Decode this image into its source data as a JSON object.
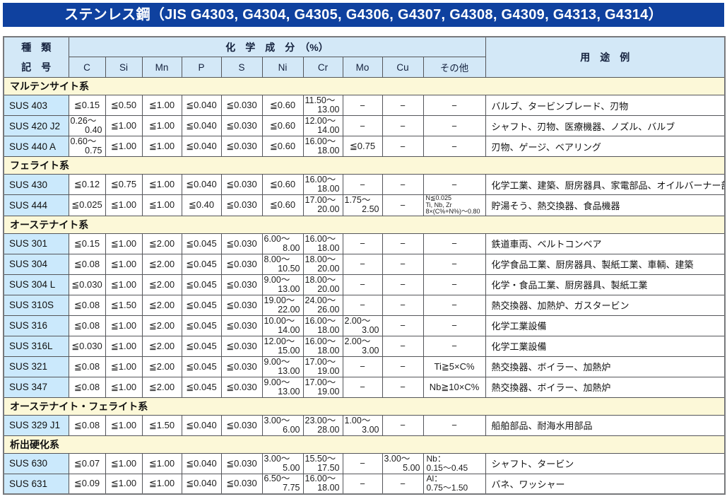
{
  "title": "ステンレス鋼（JIS G4303, G4304, G4305, G4306, G4307, G4308, G4309, G4313, G4314）",
  "colors": {
    "title_bg": "#0f419f",
    "header_bg": "#d3e8f7",
    "label_bg": "#cbe9fc",
    "section_bg": "#fcf8d8"
  },
  "header": {
    "kind_line1": "種　類",
    "kind_line2": "記　号",
    "chem_group": "化　学　成　分　（%）",
    "columns": [
      "C",
      "Si",
      "Mn",
      "P",
      "S",
      "Ni",
      "Cr",
      "Mo",
      "Cu",
      "その他"
    ],
    "usage": "用　途　例"
  },
  "sections": [
    {
      "name": "マルテンサイト系",
      "rows": [
        {
          "code": "SUS 403",
          "c": "≦0.15",
          "si": "≦0.50",
          "mn": "≦1.00",
          "p": "≦0.040",
          "s": "≦0.030",
          "ni": "≦0.60",
          "cr": "11.50～\n13.00",
          "mo": "−",
          "cu": "−",
          "other": "−",
          "usage": "バルブ、タービンブレード、刃物"
        },
        {
          "code": "SUS 420 J2",
          "c": "0.26～\n0.40",
          "si": "≦1.00",
          "mn": "≦1.00",
          "p": "≦0.040",
          "s": "≦0.030",
          "ni": "≦0.60",
          "cr": "12.00～\n14.00",
          "mo": "−",
          "cu": "−",
          "other": "−",
          "usage": "シャフト、刃物、医療機器、ノズル、バルブ"
        },
        {
          "code": "SUS 440 A",
          "c": "0.60～\n0.75",
          "si": "≦1.00",
          "mn": "≦1.00",
          "p": "≦0.040",
          "s": "≦0.030",
          "ni": "≦0.60",
          "cr": "16.00～\n18.00",
          "mo": "≦0.75",
          "cu": "−",
          "other": "−",
          "usage": "刃物、ゲージ、ベアリング"
        }
      ]
    },
    {
      "name": "フェライト系",
      "rows": [
        {
          "code": "SUS 430",
          "c": "≦0.12",
          "si": "≦0.75",
          "mn": "≦1.00",
          "p": "≦0.040",
          "s": "≦0.030",
          "ni": "≦0.60",
          "cr": "16.00～\n18.00",
          "mo": "−",
          "cu": "−",
          "other": "−",
          "usage": "化学工業、建築、厨房器具、家電部品、オイルバーナー部品"
        },
        {
          "code": "SUS 444",
          "c": "≦0.025",
          "si": "≦1.00",
          "mn": "≦1.00",
          "p": "≦0.40",
          "s": "≦0.030",
          "ni": "≦0.60",
          "cr": "17.00～\n20.00",
          "mo": "1.75～\n2.50",
          "cu": "−",
          "other": "N≦0.025\nTi, Nb, Zr\n8×(C%+N%)～0.80",
          "usage": "貯湯そう、熱交換器、食品機器"
        }
      ]
    },
    {
      "name": "オーステナイト系",
      "rows": [
        {
          "code": "SUS 301",
          "c": "≦0.15",
          "si": "≦1.00",
          "mn": "≦2.00",
          "p": "≦0.045",
          "s": "≦0.030",
          "ni": "6.00～\n8.00",
          "cr": "16.00～\n18.00",
          "mo": "−",
          "cu": "−",
          "other": "−",
          "usage": "鉄道車両、ベルトコンベア"
        },
        {
          "code": "SUS 304",
          "c": "≦0.08",
          "si": "≦1.00",
          "mn": "≦2.00",
          "p": "≦0.045",
          "s": "≦0.030",
          "ni": "8.00～\n10.50",
          "cr": "18.00～\n20.00",
          "mo": "−",
          "cu": "−",
          "other": "−",
          "usage": "化学食品工業、厨房器具、製紙工業、車輌、建築"
        },
        {
          "code": "SUS 304 L",
          "c": "≦0.030",
          "si": "≦1.00",
          "mn": "≦2.00",
          "p": "≦0.045",
          "s": "≦0.030",
          "ni": "9.00～\n13.00",
          "cr": "18.00～\n20.00",
          "mo": "−",
          "cu": "−",
          "other": "−",
          "usage": "化学・食品工業、厨房器具、製紙工業"
        },
        {
          "code": "SUS 310S",
          "c": "≦0.08",
          "si": "≦1.50",
          "mn": "≦2.00",
          "p": "≦0.045",
          "s": "≦0.030",
          "ni": "19.00～\n22.00",
          "cr": "24.00～\n26.00",
          "mo": "−",
          "cu": "−",
          "other": "−",
          "usage": "熱交換器、加熱炉、ガスタービン"
        },
        {
          "code": "SUS 316",
          "c": "≦0.08",
          "si": "≦1.00",
          "mn": "≦2.00",
          "p": "≦0.045",
          "s": "≦0.030",
          "ni": "10.00～\n14.00",
          "cr": "16.00～\n18.00",
          "mo": "2.00～\n3.00",
          "cu": "−",
          "other": "−",
          "usage": "化学工業設備"
        },
        {
          "code": "SUS 316L",
          "c": "≦0.030",
          "si": "≦1.00",
          "mn": "≦2.00",
          "p": "≦0.045",
          "s": "≦0.030",
          "ni": "12.00～\n15.00",
          "cr": "16.00～\n18.00",
          "mo": "2.00～\n3.00",
          "cu": "−",
          "other": "−",
          "usage": "化学工業設備"
        },
        {
          "code": "SUS 321",
          "c": "≦0.08",
          "si": "≦1.00",
          "mn": "≦2.00",
          "p": "≦0.045",
          "s": "≦0.030",
          "ni": "9.00～\n13.00",
          "cr": "17.00～\n19.00",
          "mo": "−",
          "cu": "−",
          "other": "Ti≧5×C%",
          "usage": "熱交換器、ボイラー、加熱炉"
        },
        {
          "code": "SUS 347",
          "c": "≦0.08",
          "si": "≦1.00",
          "mn": "≦2.00",
          "p": "≦0.045",
          "s": "≦0.030",
          "ni": "9.00～\n13.00",
          "cr": "17.00～\n19.00",
          "mo": "−",
          "cu": "−",
          "other": "Nb≧10×C%",
          "usage": "熱交換器、ボイラー、加熱炉"
        }
      ]
    },
    {
      "name": "オーステナイト・フェライト系",
      "rows": [
        {
          "code": "SUS 329 J1",
          "c": "≦0.08",
          "si": "≦1.00",
          "mn": "≦1.50",
          "p": "≦0.040",
          "s": "≦0.030",
          "ni": "3.00～\n6.00",
          "cr": "23.00～\n28.00",
          "mo": "1.00～\n3.00",
          "cu": "−",
          "other": "−",
          "usage": "船舶部品、耐海水用部品"
        }
      ]
    },
    {
      "name": "析出硬化系",
      "rows": [
        {
          "code": "SUS 630",
          "c": "≦0.07",
          "si": "≦1.00",
          "mn": "≦1.00",
          "p": "≦0.040",
          "s": "≦0.030",
          "ni": "3.00～\n5.00",
          "cr": "15.50～\n17.50",
          "mo": "−",
          "cu": "3.00～\n5.00",
          "other": "Nb：\n0.15～0.45",
          "usage": "シャフト、タービン"
        },
        {
          "code": "SUS 631",
          "c": "≦0.09",
          "si": "≦1.00",
          "mn": "≦1.00",
          "p": "≦0.040",
          "s": "≦0.030",
          "ni": "6.50～\n7.75",
          "cr": "16.00～\n18.00",
          "mo": "−",
          "cu": "−",
          "other": "Al：\n0.75～1.50",
          "usage": "バネ、ワッシャー"
        }
      ]
    }
  ]
}
